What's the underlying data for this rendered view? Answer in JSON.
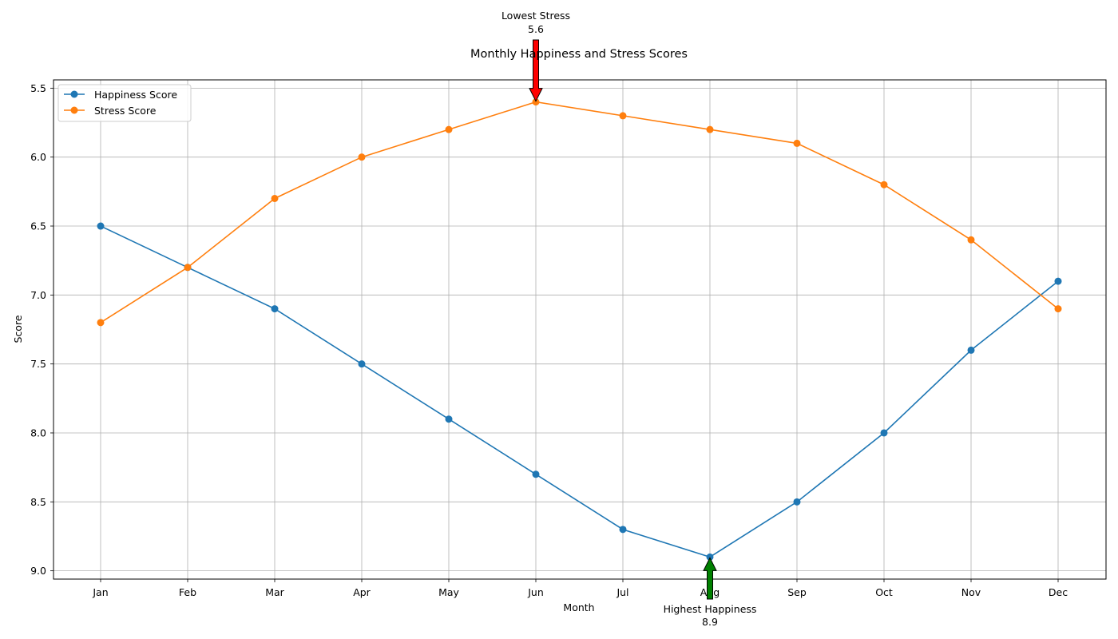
{
  "chart_data": {
    "type": "line",
    "title": "Monthly Happiness and Stress Scores",
    "xlabel": "Month",
    "ylabel": "Score",
    "categories": [
      "Jan",
      "Feb",
      "Mar",
      "Apr",
      "May",
      "Jun",
      "Jul",
      "Aug",
      "Sep",
      "Oct",
      "Nov",
      "Dec"
    ],
    "ylim": [
      9.06,
      5.44
    ],
    "y_inverted": true,
    "yticks": [
      "5.5",
      "6.0",
      "6.5",
      "7.0",
      "7.5",
      "8.0",
      "8.5",
      "9.0"
    ],
    "grid": true,
    "legend_position": "upper-left",
    "series": [
      {
        "name": "Happiness Score",
        "color": "#1f77b4",
        "marker": "circle",
        "values": [
          6.5,
          6.8,
          7.1,
          7.5,
          7.9,
          8.3,
          8.7,
          8.9,
          8.5,
          8.0,
          7.4,
          6.9
        ]
      },
      {
        "name": "Stress Score",
        "color": "#ff7f0e",
        "marker": "circle",
        "values": [
          7.2,
          6.8,
          6.3,
          6.0,
          5.8,
          5.6,
          5.7,
          5.8,
          5.9,
          6.2,
          6.6,
          7.1
        ]
      }
    ],
    "annotations": [
      {
        "label": "Lowest Stress",
        "value_text": "5.6",
        "x": "Jun",
        "y": 5.6,
        "arrow_color": "#ff0000",
        "direction": "down"
      },
      {
        "label": "Highest Happiness",
        "value_text": "8.9",
        "x": "Aug",
        "y": 8.9,
        "arrow_color": "#008000",
        "direction": "up"
      }
    ]
  }
}
